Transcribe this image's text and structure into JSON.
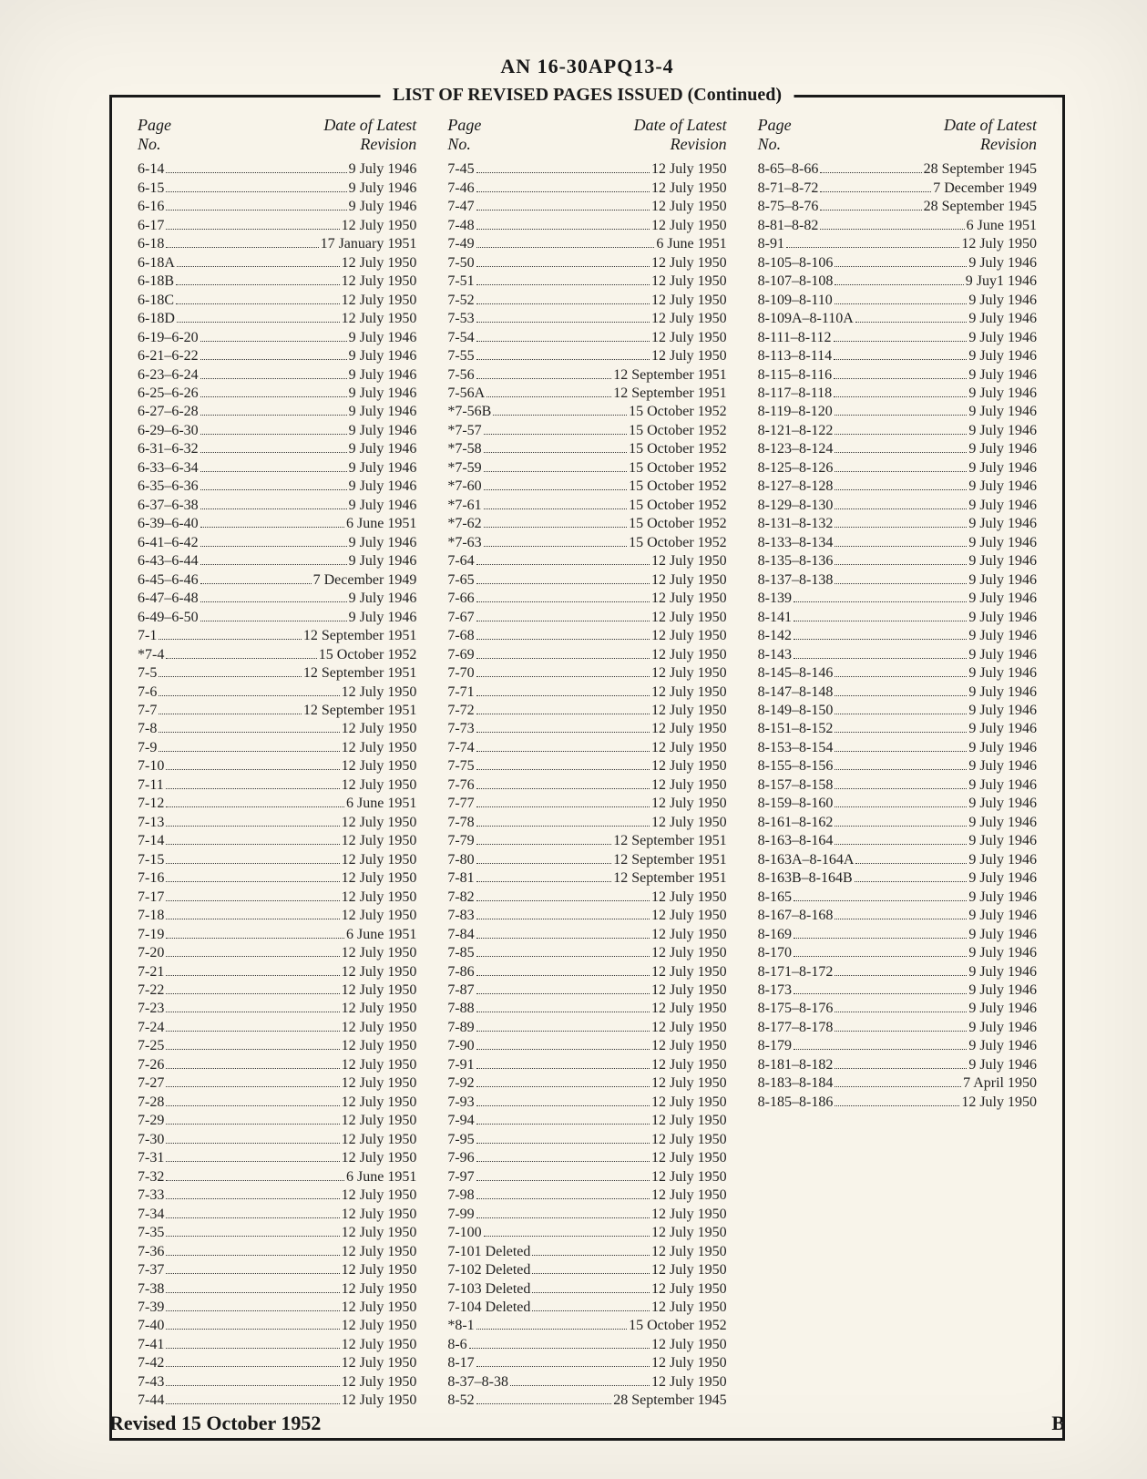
{
  "doc_number": "AN 16-30APQ13-4",
  "frame_title": "LIST OF REVISED PAGES ISSUED (Continued)",
  "column_header": {
    "page_label": "Page\nNo.",
    "date_label": "Date of Latest\nRevision"
  },
  "footer_left": "Revised 15 October 1952",
  "footer_right": "B",
  "columns": [
    [
      {
        "page": "6-14",
        "date": "9 July 1946"
      },
      {
        "page": "6-15",
        "date": "9 July 1946"
      },
      {
        "page": "6-16",
        "date": "9 July 1946"
      },
      {
        "page": "6-17",
        "date": "12 July 1950"
      },
      {
        "page": "6-18",
        "date": "17 January 1951"
      },
      {
        "page": "6-18A",
        "date": "12 July 1950"
      },
      {
        "page": "6-18B",
        "date": "12 July 1950"
      },
      {
        "page": "6-18C",
        "date": "12 July 1950"
      },
      {
        "page": "6-18D",
        "date": "12 July 1950"
      },
      {
        "page": "6-19–6-20",
        "date": "9 July 1946"
      },
      {
        "page": "6-21–6-22",
        "date": "9 July 1946"
      },
      {
        "page": "6-23–6-24",
        "date": "9 July 1946"
      },
      {
        "page": "6-25–6-26",
        "date": "9 July 1946"
      },
      {
        "page": "6-27–6-28",
        "date": "9 July 1946"
      },
      {
        "page": "6-29–6-30",
        "date": "9 July 1946"
      },
      {
        "page": "6-31–6-32",
        "date": "9 July 1946"
      },
      {
        "page": "6-33–6-34",
        "date": "9 July 1946"
      },
      {
        "page": "6-35–6-36",
        "date": "9 July 1946"
      },
      {
        "page": "6-37–6-38",
        "date": "9 July 1946"
      },
      {
        "page": "6-39–6-40",
        "date": "6 June 1951"
      },
      {
        "page": "6-41–6-42",
        "date": "9 July 1946"
      },
      {
        "page": "6-43–6-44",
        "date": "9 July 1946"
      },
      {
        "page": "6-45–6-46",
        "date": "7 December 1949"
      },
      {
        "page": "6-47–6-48",
        "date": "9 July 1946"
      },
      {
        "page": "6-49–6-50",
        "date": "9 July 1946"
      },
      {
        "page": "7-1",
        "date": "12 September 1951"
      },
      {
        "page": "*7-4",
        "date": "15 October 1952"
      },
      {
        "page": "7-5",
        "date": "12 September 1951"
      },
      {
        "page": "7-6",
        "date": "12 July 1950"
      },
      {
        "page": "7-7",
        "date": "12 September 1951"
      },
      {
        "page": "7-8",
        "date": "12 July 1950"
      },
      {
        "page": "7-9",
        "date": "12 July 1950"
      },
      {
        "page": "7-10",
        "date": "12 July 1950"
      },
      {
        "page": "7-11",
        "date": "12 July 1950"
      },
      {
        "page": "7-12",
        "date": "6 June 1951"
      },
      {
        "page": "7-13",
        "date": "12 July 1950"
      },
      {
        "page": "7-14",
        "date": "12 July 1950"
      },
      {
        "page": "7-15",
        "date": "12 July 1950"
      },
      {
        "page": "7-16",
        "date": "12 July 1950"
      },
      {
        "page": "7-17",
        "date": "12 July 1950"
      },
      {
        "page": "7-18",
        "date": "12 July 1950"
      },
      {
        "page": "7-19",
        "date": "6 June 1951"
      },
      {
        "page": "7-20",
        "date": "12 July 1950"
      },
      {
        "page": "7-21",
        "date": "12 July 1950"
      },
      {
        "page": "7-22",
        "date": "12 July 1950"
      },
      {
        "page": "7-23",
        "date": "12 July 1950"
      },
      {
        "page": "7-24",
        "date": "12 July 1950"
      },
      {
        "page": "7-25",
        "date": "12 July 1950"
      },
      {
        "page": "7-26",
        "date": "12 July 1950"
      },
      {
        "page": "7-27",
        "date": "12 July 1950"
      },
      {
        "page": "7-28",
        "date": "12 July 1950"
      },
      {
        "page": "7-29",
        "date": "12 July 1950"
      },
      {
        "page": "7-30",
        "date": "12 July 1950"
      },
      {
        "page": "7-31",
        "date": "12 July 1950"
      },
      {
        "page": "7-32",
        "date": "6 June 1951"
      },
      {
        "page": "7-33",
        "date": "12 July 1950"
      },
      {
        "page": "7-34",
        "date": "12 July 1950"
      },
      {
        "page": "7-35",
        "date": "12 July 1950"
      },
      {
        "page": "7-36",
        "date": "12 July 1950"
      },
      {
        "page": "7-37",
        "date": "12 July 1950"
      },
      {
        "page": "7-38",
        "date": "12 July 1950"
      },
      {
        "page": "7-39",
        "date": "12 July 1950"
      },
      {
        "page": "7-40",
        "date": "12 July 1950"
      },
      {
        "page": "7-41",
        "date": "12 July 1950"
      },
      {
        "page": "7-42",
        "date": "12 July 1950"
      },
      {
        "page": "7-43",
        "date": "12 July 1950"
      },
      {
        "page": "7-44",
        "date": "12 July 1950"
      }
    ],
    [
      {
        "page": "7-45",
        "date": "12 July 1950"
      },
      {
        "page": "7-46",
        "date": "12 July 1950"
      },
      {
        "page": "7-47",
        "date": "12 July 1950"
      },
      {
        "page": "7-48",
        "date": "12 July 1950"
      },
      {
        "page": "7-49",
        "date": "6 June 1951"
      },
      {
        "page": "7-50",
        "date": "12 July 1950"
      },
      {
        "page": "7-51",
        "date": "12 July 1950"
      },
      {
        "page": "7-52",
        "date": "12 July 1950"
      },
      {
        "page": "7-53",
        "date": "12 July 1950"
      },
      {
        "page": "7-54",
        "date": "12 July 1950"
      },
      {
        "page": "7-55",
        "date": "12 July 1950"
      },
      {
        "page": "7-56",
        "date": "12 September 1951"
      },
      {
        "page": "7-56A",
        "date": "12 September 1951"
      },
      {
        "page": "*7-56B",
        "date": "15 October 1952"
      },
      {
        "page": "*7-57",
        "date": "15 October 1952"
      },
      {
        "page": "*7-58",
        "date": "15 October 1952"
      },
      {
        "page": "*7-59",
        "date": "15 October 1952"
      },
      {
        "page": "*7-60",
        "date": "15 October 1952"
      },
      {
        "page": "*7-61",
        "date": "15 October 1952"
      },
      {
        "page": "*7-62",
        "date": "15 October 1952"
      },
      {
        "page": "*7-63",
        "date": "15 October 1952"
      },
      {
        "page": "7-64",
        "date": "12 July 1950"
      },
      {
        "page": "7-65",
        "date": "12 July 1950"
      },
      {
        "page": "7-66",
        "date": "12 July 1950"
      },
      {
        "page": "7-67",
        "date": "12 July 1950"
      },
      {
        "page": "7-68",
        "date": "12 July 1950"
      },
      {
        "page": "7-69",
        "date": "12 July 1950"
      },
      {
        "page": "7-70",
        "date": "12 July 1950"
      },
      {
        "page": "7-71",
        "date": "12 July 1950"
      },
      {
        "page": "7-72",
        "date": "12 July 1950"
      },
      {
        "page": "7-73",
        "date": "12 July 1950"
      },
      {
        "page": "7-74",
        "date": "12 July 1950"
      },
      {
        "page": "7-75",
        "date": "12 July 1950"
      },
      {
        "page": "7-76",
        "date": "12 July 1950"
      },
      {
        "page": "7-77",
        "date": "12 July 1950"
      },
      {
        "page": "7-78",
        "date": "12 July 1950"
      },
      {
        "page": "7-79",
        "date": "12 September 1951"
      },
      {
        "page": "7-80",
        "date": "12 September 1951"
      },
      {
        "page": "7-81",
        "date": "12 September 1951"
      },
      {
        "page": "7-82",
        "date": "12 July 1950"
      },
      {
        "page": "7-83",
        "date": "12 July 1950"
      },
      {
        "page": "7-84",
        "date": "12 July 1950"
      },
      {
        "page": "7-85",
        "date": "12 July 1950"
      },
      {
        "page": "7-86",
        "date": "12 July 1950"
      },
      {
        "page": "7-87",
        "date": "12 July 1950"
      },
      {
        "page": "7-88",
        "date": "12 July 1950"
      },
      {
        "page": "7-89",
        "date": "12 July 1950"
      },
      {
        "page": "7-90",
        "date": "12 July 1950"
      },
      {
        "page": "7-91",
        "date": "12 July 1950"
      },
      {
        "page": "7-92",
        "date": "12 July 1950"
      },
      {
        "page": "7-93",
        "date": "12 July 1950"
      },
      {
        "page": "7-94",
        "date": "12 July 1950"
      },
      {
        "page": "7-95",
        "date": "12 July 1950"
      },
      {
        "page": "7-96",
        "date": "12 July 1950"
      },
      {
        "page": "7-97",
        "date": "12 July 1950"
      },
      {
        "page": "7-98",
        "date": "12 July 1950"
      },
      {
        "page": "7-99",
        "date": "12 July 1950"
      },
      {
        "page": "7-100",
        "date": "12 July 1950"
      },
      {
        "page": "7-101 Deleted",
        "date": "12 July 1950"
      },
      {
        "page": "7-102 Deleted",
        "date": "12 July 1950"
      },
      {
        "page": "7-103 Deleted",
        "date": "12 July 1950"
      },
      {
        "page": "7-104 Deleted",
        "date": "12 July 1950"
      },
      {
        "page": "*8-1",
        "date": "15 October 1952"
      },
      {
        "page": "8-6",
        "date": "12 July 1950"
      },
      {
        "page": "8-17",
        "date": "12 July 1950"
      },
      {
        "page": "8-37–8-38",
        "date": "12 July 1950"
      },
      {
        "page": "8-52",
        "date": "28 September 1945"
      }
    ],
    [
      {
        "page": "8-65–8-66",
        "date": "28 September 1945"
      },
      {
        "page": "8-71–8-72",
        "date": "7 December 1949"
      },
      {
        "page": "8-75–8-76",
        "date": "28 September 1945"
      },
      {
        "page": "8-81–8-82",
        "date": "6 June 1951"
      },
      {
        "page": "8-91",
        "date": "12 July 1950"
      },
      {
        "page": "8-105–8-106",
        "date": "9 July 1946"
      },
      {
        "page": "8-107–8-108",
        "date": "9 Juy1 1946"
      },
      {
        "page": "8-109–8-110",
        "date": "9 July 1946"
      },
      {
        "page": "8-109A–8-110A",
        "date": "9 July 1946"
      },
      {
        "page": "8-111–8-112",
        "date": "9 July 1946"
      },
      {
        "page": "8-113–8-114",
        "date": "9 July 1946"
      },
      {
        "page": "8-115–8-116",
        "date": "9 July 1946"
      },
      {
        "page": "8-117–8-118",
        "date": "9 July 1946"
      },
      {
        "page": "8-119–8-120",
        "date": "9 July 1946"
      },
      {
        "page": "8-121–8-122",
        "date": "9 July 1946"
      },
      {
        "page": "8-123–8-124",
        "date": "9 July 1946"
      },
      {
        "page": "8-125–8-126",
        "date": "9 July 1946"
      },
      {
        "page": "8-127–8-128",
        "date": "9 July 1946"
      },
      {
        "page": "8-129–8-130",
        "date": "9 July 1946"
      },
      {
        "page": "8-131–8-132",
        "date": "9 July 1946"
      },
      {
        "page": "8-133–8-134",
        "date": "9 July 1946"
      },
      {
        "page": "8-135–8-136",
        "date": "9 July 1946"
      },
      {
        "page": "8-137–8-138",
        "date": "9 July 1946"
      },
      {
        "page": "8-139",
        "date": "9 July 1946"
      },
      {
        "page": "8-141",
        "date": "9 July 1946"
      },
      {
        "page": "8-142",
        "date": "9 July 1946"
      },
      {
        "page": "8-143",
        "date": "9 July 1946"
      },
      {
        "page": "8-145–8-146",
        "date": "9 July 1946"
      },
      {
        "page": "8-147–8-148",
        "date": "9 July 1946"
      },
      {
        "page": "8-149–8-150",
        "date": "9 July 1946"
      },
      {
        "page": "8-151–8-152",
        "date": "9 July 1946"
      },
      {
        "page": "8-153–8-154",
        "date": "9 July 1946"
      },
      {
        "page": "8-155–8-156",
        "date": "9 July 1946"
      },
      {
        "page": "8-157–8-158",
        "date": "9 July 1946"
      },
      {
        "page": "8-159–8-160",
        "date": "9 July 1946"
      },
      {
        "page": "8-161–8-162",
        "date": "9 July 1946"
      },
      {
        "page": "8-163–8-164",
        "date": "9 July 1946"
      },
      {
        "page": "8-163A–8-164A",
        "date": "9 July 1946"
      },
      {
        "page": "8-163B–8-164B",
        "date": "9 July 1946"
      },
      {
        "page": "8-165",
        "date": "9 July 1946"
      },
      {
        "page": "8-167–8-168",
        "date": "9 July 1946"
      },
      {
        "page": "8-169",
        "date": "9 July 1946"
      },
      {
        "page": "8-170",
        "date": "9 July 1946"
      },
      {
        "page": "8-171–8-172",
        "date": "9 July 1946"
      },
      {
        "page": "8-173",
        "date": "9 July 1946"
      },
      {
        "page": "8-175–8-176",
        "date": "9 July 1946"
      },
      {
        "page": "8-177–8-178",
        "date": "9 July 1946"
      },
      {
        "page": "8-179",
        "date": "9 July 1946"
      },
      {
        "page": "8-181–8-182",
        "date": "9 July 1946"
      },
      {
        "page": "8-183–8-184",
        "date": "7 April 1950"
      },
      {
        "page": "8-185–8-186",
        "date": "12 July 1950"
      }
    ]
  ]
}
